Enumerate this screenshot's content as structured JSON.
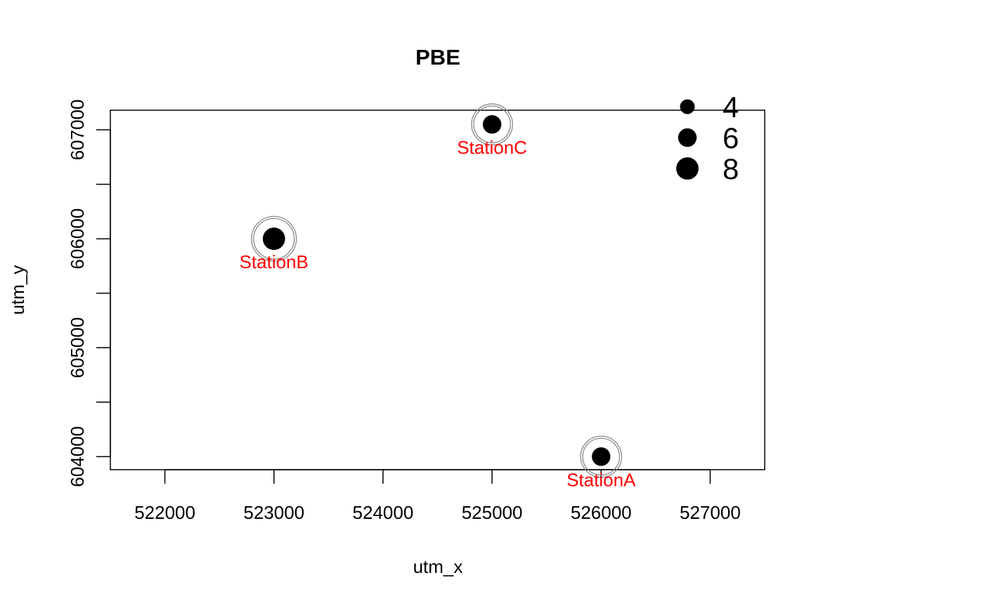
{
  "chart_data": {
    "type": "scatter",
    "title": "PBE",
    "xlabel": "utm_x",
    "ylabel": "utm_y",
    "xlim": [
      521500,
      527500
    ],
    "ylim": [
      603880,
      607180
    ],
    "x_ticks": [
      522000,
      523000,
      524000,
      525000,
      526000,
      527000
    ],
    "y_ticks": [
      604000,
      604500,
      605000,
      605500,
      606000,
      606500,
      607000
    ],
    "y_tick_labels": [
      "604000",
      "605000",
      "606000",
      "607000"
    ],
    "grid": false,
    "legend_position": "top-right",
    "legend": [
      {
        "label": "4",
        "size": 4
      },
      {
        "label": "6",
        "size": 6
      },
      {
        "label": "8",
        "size": 8
      }
    ],
    "points": [
      {
        "label": "StationA",
        "x": 526000,
        "y": 604000,
        "value": 6
      },
      {
        "label": "StationB",
        "x": 523000,
        "y": 606000,
        "value": 8
      },
      {
        "label": "StationC",
        "x": 525000,
        "y": 607050,
        "value": 6
      }
    ],
    "colors": {
      "point": "#000000",
      "ring": "#808080",
      "station_label": "#ff0000"
    }
  }
}
